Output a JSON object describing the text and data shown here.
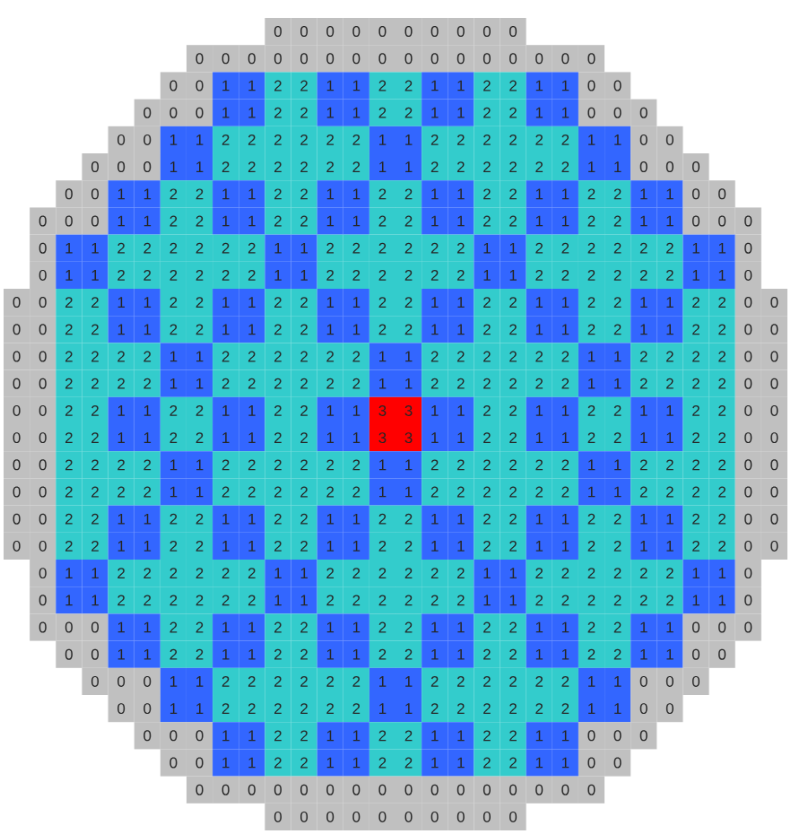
{
  "chart_data": {
    "type": "heatmap",
    "categories": [
      null,
      null,
      null,
      null,
      null,
      null,
      null,
      null,
      null,
      null,
      null,
      null,
      null,
      null,
      null,
      null,
      null,
      null,
      null,
      null,
      null,
      null,
      null,
      null,
      null,
      null,
      null,
      null,
      null,
      null
    ],
    "y_categories": [
      null,
      null,
      null,
      null,
      null,
      null,
      null,
      null,
      null,
      null,
      null,
      null,
      null,
      null,
      null,
      null,
      null,
      null,
      null,
      null,
      null,
      null,
      null,
      null,
      null,
      null,
      null,
      null,
      null,
      null
    ],
    "colors": [
      "#c0c0c0",
      "#3366ff",
      "#33cccc",
      "#ff0000"
    ],
    "data_labels": true,
    "tick_labels": false,
    "cells": [
      [
        null,
        null,
        null,
        null,
        null,
        null,
        null,
        null,
        null,
        null,
        0,
        0,
        0,
        0,
        0,
        0,
        0,
        0,
        0,
        0,
        null,
        null,
        null,
        null,
        null,
        null,
        null,
        null,
        null,
        null
      ],
      [
        null,
        null,
        null,
        null,
        null,
        null,
        null,
        0,
        0,
        0,
        0,
        0,
        0,
        0,
        0,
        0,
        0,
        0,
        0,
        0,
        0,
        0,
        0,
        null,
        null,
        null,
        null,
        null,
        null,
        null
      ],
      [
        null,
        null,
        null,
        null,
        null,
        null,
        0,
        0,
        1,
        1,
        2,
        2,
        1,
        1,
        2,
        2,
        1,
        1,
        2,
        2,
        1,
        1,
        0,
        0,
        null,
        null,
        null,
        null,
        null,
        null
      ],
      [
        null,
        null,
        null,
        null,
        null,
        0,
        0,
        0,
        1,
        1,
        2,
        2,
        1,
        1,
        2,
        2,
        1,
        1,
        2,
        2,
        1,
        1,
        0,
        0,
        0,
        null,
        null,
        null,
        null,
        null
      ],
      [
        null,
        null,
        null,
        null,
        0,
        0,
        1,
        1,
        2,
        2,
        2,
        2,
        2,
        2,
        1,
        1,
        2,
        2,
        2,
        2,
        2,
        2,
        1,
        1,
        0,
        0,
        null,
        null,
        null,
        null
      ],
      [
        null,
        null,
        null,
        0,
        0,
        0,
        1,
        1,
        2,
        2,
        2,
        2,
        2,
        2,
        1,
        1,
        2,
        2,
        2,
        2,
        2,
        2,
        1,
        1,
        0,
        0,
        0,
        null,
        null,
        null
      ],
      [
        null,
        null,
        0,
        0,
        1,
        1,
        2,
        2,
        1,
        1,
        2,
        2,
        1,
        1,
        2,
        2,
        1,
        1,
        2,
        2,
        1,
        1,
        2,
        2,
        1,
        1,
        0,
        0,
        null,
        null
      ],
      [
        null,
        0,
        0,
        0,
        1,
        1,
        2,
        2,
        1,
        1,
        2,
        2,
        1,
        1,
        2,
        2,
        1,
        1,
        2,
        2,
        1,
        1,
        2,
        2,
        1,
        1,
        0,
        0,
        0,
        null
      ],
      [
        null,
        0,
        1,
        1,
        2,
        2,
        2,
        2,
        2,
        2,
        1,
        1,
        2,
        2,
        2,
        2,
        2,
        2,
        1,
        1,
        2,
        2,
        2,
        2,
        2,
        2,
        1,
        1,
        0,
        null
      ],
      [
        null,
        0,
        1,
        1,
        2,
        2,
        2,
        2,
        2,
        2,
        1,
        1,
        2,
        2,
        2,
        2,
        2,
        2,
        1,
        1,
        2,
        2,
        2,
        2,
        2,
        2,
        1,
        1,
        0,
        null
      ],
      [
        0,
        0,
        2,
        2,
        1,
        1,
        2,
        2,
        1,
        1,
        2,
        2,
        1,
        1,
        2,
        2,
        1,
        1,
        2,
        2,
        1,
        1,
        2,
        2,
        1,
        1,
        2,
        2,
        0,
        0
      ],
      [
        0,
        0,
        2,
        2,
        1,
        1,
        2,
        2,
        1,
        1,
        2,
        2,
        1,
        1,
        2,
        2,
        1,
        1,
        2,
        2,
        1,
        1,
        2,
        2,
        1,
        1,
        2,
        2,
        0,
        0
      ],
      [
        0,
        0,
        2,
        2,
        2,
        2,
        1,
        1,
        2,
        2,
        2,
        2,
        2,
        2,
        1,
        1,
        2,
        2,
        2,
        2,
        2,
        2,
        1,
        1,
        2,
        2,
        2,
        2,
        0,
        0
      ],
      [
        0,
        0,
        2,
        2,
        2,
        2,
        1,
        1,
        2,
        2,
        2,
        2,
        2,
        2,
        1,
        1,
        2,
        2,
        2,
        2,
        2,
        2,
        1,
        1,
        2,
        2,
        2,
        2,
        0,
        0
      ],
      [
        0,
        0,
        2,
        2,
        1,
        1,
        2,
        2,
        1,
        1,
        2,
        2,
        1,
        1,
        3,
        3,
        1,
        1,
        2,
        2,
        1,
        1,
        2,
        2,
        1,
        1,
        2,
        2,
        0,
        0
      ],
      [
        0,
        0,
        2,
        2,
        1,
        1,
        2,
        2,
        1,
        1,
        2,
        2,
        1,
        1,
        3,
        3,
        1,
        1,
        2,
        2,
        1,
        1,
        2,
        2,
        1,
        1,
        2,
        2,
        0,
        0
      ],
      [
        0,
        0,
        2,
        2,
        2,
        2,
        1,
        1,
        2,
        2,
        2,
        2,
        2,
        2,
        1,
        1,
        2,
        2,
        2,
        2,
        2,
        2,
        1,
        1,
        2,
        2,
        2,
        2,
        0,
        0
      ],
      [
        0,
        0,
        2,
        2,
        2,
        2,
        1,
        1,
        2,
        2,
        2,
        2,
        2,
        2,
        1,
        1,
        2,
        2,
        2,
        2,
        2,
        2,
        1,
        1,
        2,
        2,
        2,
        2,
        0,
        0
      ],
      [
        0,
        0,
        2,
        2,
        1,
        1,
        2,
        2,
        1,
        1,
        2,
        2,
        1,
        1,
        2,
        2,
        1,
        1,
        2,
        2,
        1,
        1,
        2,
        2,
        1,
        1,
        2,
        2,
        0,
        0
      ],
      [
        0,
        0,
        2,
        2,
        1,
        1,
        2,
        2,
        1,
        1,
        2,
        2,
        1,
        1,
        2,
        2,
        1,
        1,
        2,
        2,
        1,
        1,
        2,
        2,
        1,
        1,
        2,
        2,
        0,
        0
      ],
      [
        null,
        0,
        1,
        1,
        2,
        2,
        2,
        2,
        2,
        2,
        1,
        1,
        2,
        2,
        2,
        2,
        2,
        2,
        1,
        1,
        2,
        2,
        2,
        2,
        2,
        2,
        1,
        1,
        0,
        null
      ],
      [
        null,
        0,
        1,
        1,
        2,
        2,
        2,
        2,
        2,
        2,
        1,
        1,
        2,
        2,
        2,
        2,
        2,
        2,
        1,
        1,
        2,
        2,
        2,
        2,
        2,
        2,
        1,
        1,
        0,
        null
      ],
      [
        null,
        0,
        0,
        0,
        1,
        1,
        2,
        2,
        1,
        1,
        2,
        2,
        1,
        1,
        2,
        2,
        1,
        1,
        2,
        2,
        1,
        1,
        2,
        2,
        1,
        1,
        0,
        0,
        0,
        null
      ],
      [
        null,
        null,
        0,
        0,
        1,
        1,
        2,
        2,
        1,
        1,
        2,
        2,
        1,
        1,
        2,
        2,
        1,
        1,
        2,
        2,
        1,
        1,
        2,
        2,
        1,
        1,
        0,
        0,
        null,
        null
      ],
      [
        null,
        null,
        null,
        0,
        0,
        0,
        1,
        1,
        2,
        2,
        2,
        2,
        2,
        2,
        1,
        1,
        2,
        2,
        2,
        2,
        2,
        2,
        1,
        1,
        0,
        0,
        0,
        null,
        null,
        null
      ],
      [
        null,
        null,
        null,
        null,
        0,
        0,
        1,
        1,
        2,
        2,
        2,
        2,
        2,
        2,
        1,
        1,
        2,
        2,
        2,
        2,
        2,
        2,
        1,
        1,
        0,
        0,
        null,
        null,
        null,
        null
      ],
      [
        null,
        null,
        null,
        null,
        null,
        0,
        0,
        0,
        1,
        1,
        2,
        2,
        1,
        1,
        2,
        2,
        1,
        1,
        2,
        2,
        1,
        1,
        0,
        0,
        0,
        null,
        null,
        null,
        null,
        null
      ],
      [
        null,
        null,
        null,
        null,
        null,
        null,
        0,
        0,
        1,
        1,
        2,
        2,
        1,
        1,
        2,
        2,
        1,
        1,
        2,
        2,
        1,
        1,
        0,
        0,
        null,
        null,
        null,
        null,
        null,
        null
      ],
      [
        null,
        null,
        null,
        null,
        null,
        null,
        null,
        0,
        0,
        0,
        0,
        0,
        0,
        0,
        0,
        0,
        0,
        0,
        0,
        0,
        0,
        0,
        0,
        null,
        null,
        null,
        null,
        null,
        null,
        null
      ],
      [
        null,
        null,
        null,
        null,
        null,
        null,
        null,
        null,
        null,
        null,
        0,
        0,
        0,
        0,
        0,
        0,
        0,
        0,
        0,
        0,
        null,
        null,
        null,
        null,
        null,
        null,
        null,
        null,
        null,
        null
      ]
    ]
  }
}
